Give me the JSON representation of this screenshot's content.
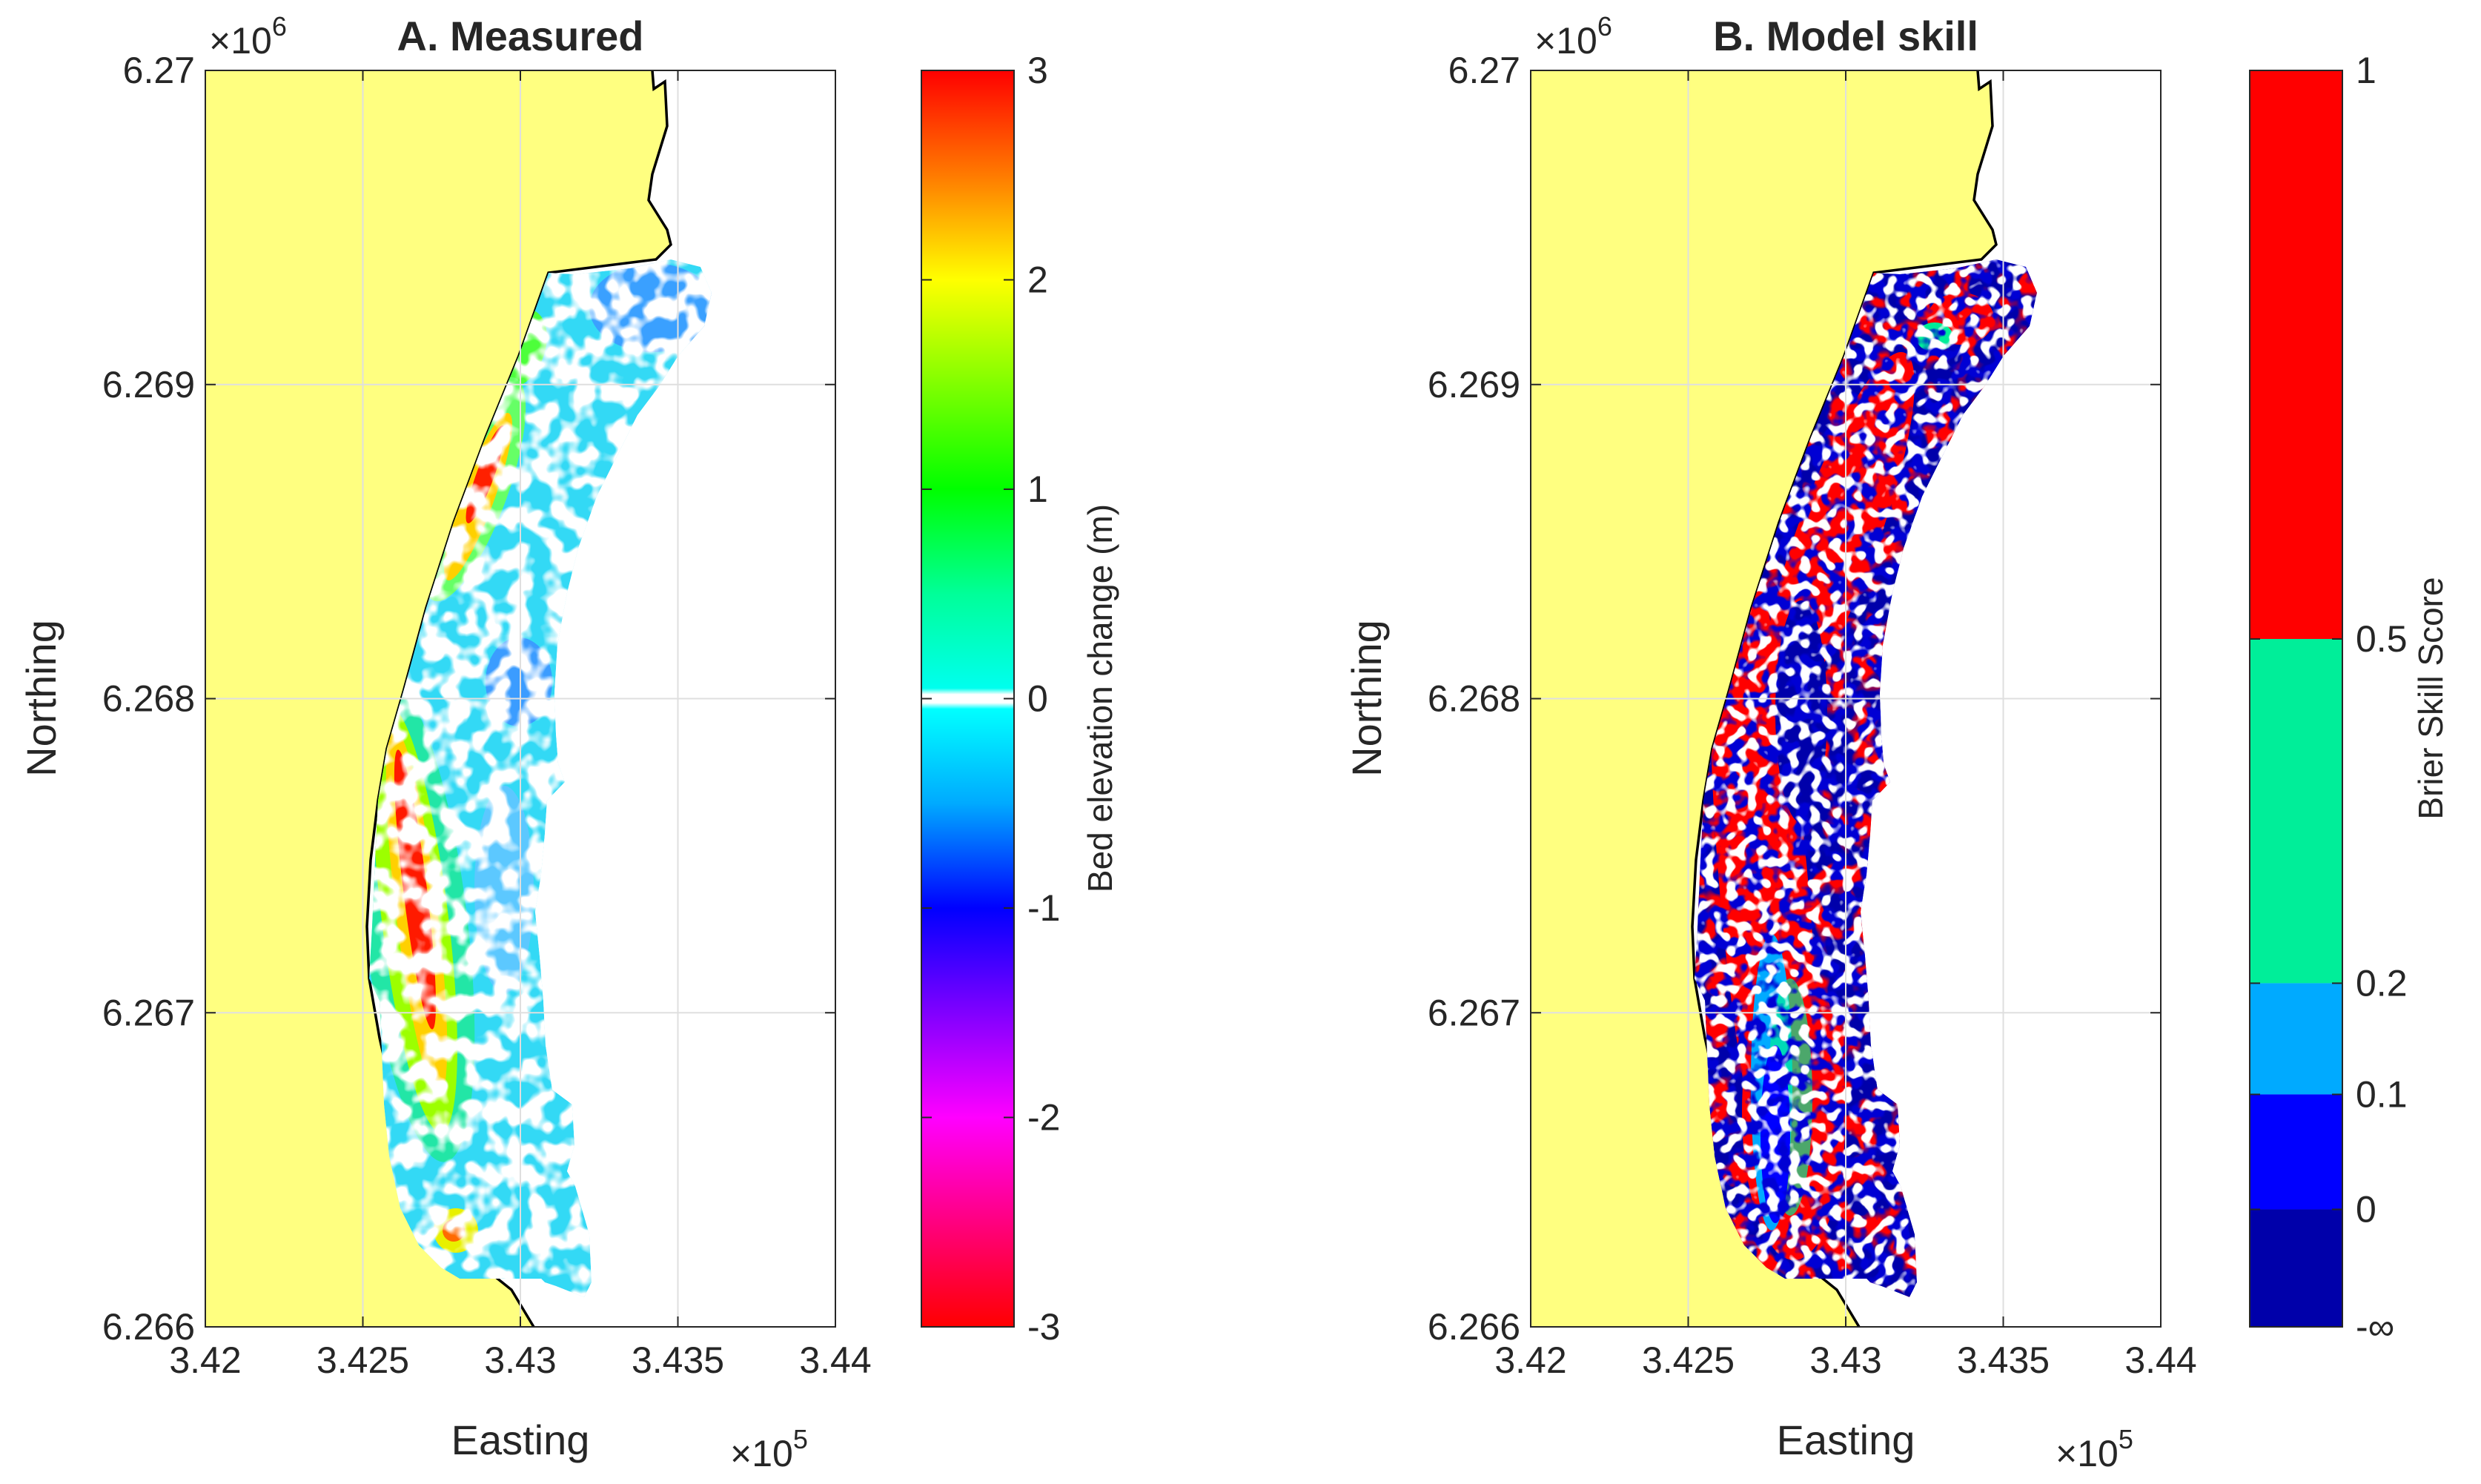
{
  "chart_data": [
    {
      "type": "heatmap",
      "title": "A. Measured",
      "xlabel": "Easting",
      "ylabel": "Northing",
      "xlim": [
        342000,
        344000
      ],
      "ylim": [
        6266000,
        6270000
      ],
      "x_ticks": [
        "3.42",
        "3.425",
        "3.43",
        "3.435",
        "3.44"
      ],
      "y_ticks": [
        "6.266",
        "6.267",
        "6.268",
        "6.269",
        "6.27"
      ],
      "x_exponent": {
        "base": "×10",
        "power": "5"
      },
      "y_exponent": {
        "base": "×10",
        "power": "6"
      },
      "grid": true,
      "colorbar": {
        "label": "Bed elevation change (m)",
        "range": [
          -3,
          3
        ],
        "ticks": [
          "3",
          "2",
          "1",
          "0",
          "-1",
          "-2",
          "-3"
        ],
        "stops": [
          {
            "value": 3,
            "color": "#ff0000"
          },
          {
            "value": 2.5,
            "color": "#ff7a00"
          },
          {
            "value": 2,
            "color": "#ffff00"
          },
          {
            "value": 1.5,
            "color": "#80ff00"
          },
          {
            "value": 1,
            "color": "#00ff00"
          },
          {
            "value": 0.5,
            "color": "#00ff99"
          },
          {
            "value": 0.05,
            "color": "#00ffee"
          },
          {
            "value": 0.02,
            "color": "#ffffff"
          },
          {
            "value": -0.02,
            "color": "#ffffff"
          },
          {
            "value": -0.05,
            "color": "#00ffff"
          },
          {
            "value": -0.5,
            "color": "#00aaff"
          },
          {
            "value": -1,
            "color": "#0000ff"
          },
          {
            "value": -1.5,
            "color": "#8000ff"
          },
          {
            "value": -2,
            "color": "#ff00ff"
          },
          {
            "value": -3,
            "color": "#ff0000"
          }
        ]
      },
      "colors": {
        "land": "#ffff80",
        "coastline": "#000000"
      }
    },
    {
      "type": "heatmap",
      "title": "B. Model skill",
      "xlabel": "Easting",
      "ylabel": "Northing",
      "xlim": [
        342000,
        344000
      ],
      "ylim": [
        6266000,
        6270000
      ],
      "x_ticks": [
        "3.42",
        "3.425",
        "3.43",
        "3.435",
        "3.44"
      ],
      "y_ticks": [
        "6.266",
        "6.267",
        "6.268",
        "6.269",
        "6.27"
      ],
      "x_exponent": {
        "base": "×10",
        "power": "5"
      },
      "y_exponent": {
        "base": "×10",
        "power": "6"
      },
      "grid": true,
      "colorbar": {
        "label": "Brier Skill Score",
        "ticks": [
          "1",
          "0.5",
          "0.2",
          "0.1",
          "0",
          "-∞"
        ],
        "classes": [
          {
            "from": "0.5",
            "to": "1",
            "color": "#ff0000"
          },
          {
            "from": "0.2",
            "to": "0.5",
            "color": "#00ee99"
          },
          {
            "from": "0.1",
            "to": "0.2",
            "color": "#00aaff"
          },
          {
            "from": "0",
            "to": "0.1",
            "color": "#0000ff"
          },
          {
            "from": "-∞",
            "to": "0",
            "color": "#0000aa"
          }
        ]
      },
      "colors": {
        "land": "#ffff80",
        "coastline": "#000000"
      }
    }
  ]
}
